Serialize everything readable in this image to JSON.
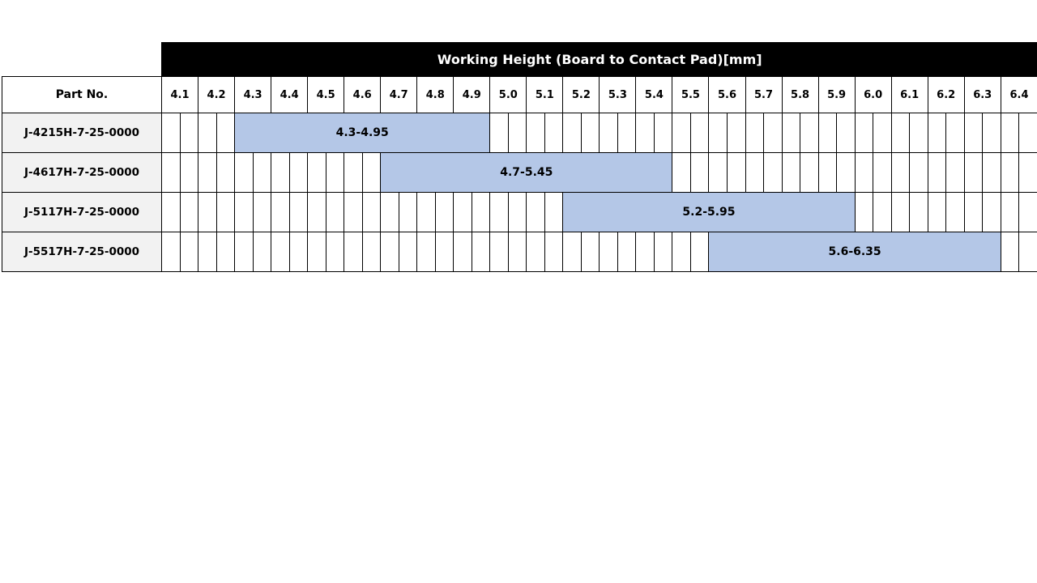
{
  "title": "Working Height (Board to Contact Pad)[mm]",
  "part_header": "Part No.",
  "columns": [
    "4.1",
    "4.2",
    "4.3",
    "4.4",
    "4.5",
    "4.6",
    "4.7",
    "4.8",
    "4.9",
    "5.0",
    "5.1",
    "5.2",
    "5.3",
    "5.4",
    "5.5",
    "5.6",
    "5.7",
    "5.8",
    "5.9",
    "6.0",
    "6.1",
    "6.2",
    "6.3",
    "6.4"
  ],
  "bar_color": "#b4c7e7",
  "rows": [
    {
      "part": "J-4215H-7-25-0000",
      "range_label": "4.3-4.95",
      "start": 4.3,
      "end": 4.95
    },
    {
      "part": "J-4617H-7-25-0000",
      "range_label": "4.7-5.45",
      "start": 4.7,
      "end": 5.45
    },
    {
      "part": "J-5117H-7-25-0000",
      "range_label": "5.2-5.95",
      "start": 5.2,
      "end": 5.95
    },
    {
      "part": "J-5517H-7-25-0000",
      "range_label": "5.6-6.35",
      "start": 5.6,
      "end": 6.35
    }
  ]
}
